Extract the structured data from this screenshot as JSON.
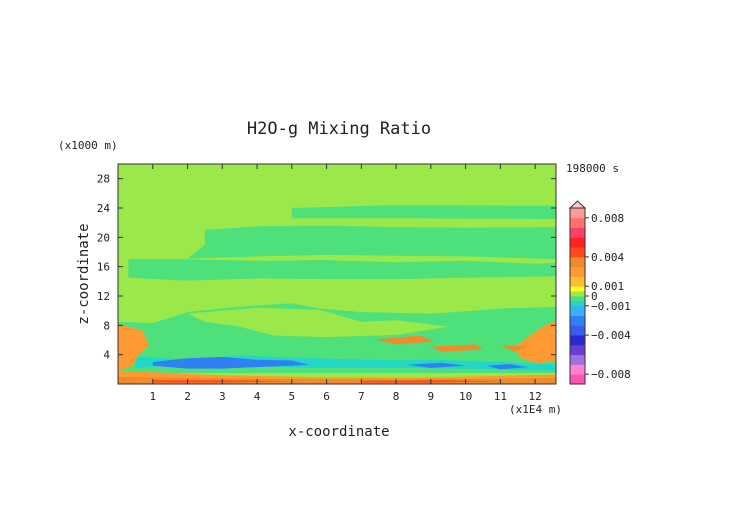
{
  "chart_data": {
    "type": "heatmap",
    "title": "H2O-g Mixing Ratio",
    "xlabel": "x-coordinate",
    "ylabel": "z-coordinate",
    "x_unit": "(x1E4 m)",
    "y_unit": "(x1000 m)",
    "time_label": "198000 s",
    "xlim": [
      0,
      12.6
    ],
    "ylim": [
      0,
      30
    ],
    "x_ticks": [
      1,
      2,
      3,
      4,
      5,
      6,
      7,
      8,
      9,
      10,
      11,
      12
    ],
    "y_ticks": [
      4,
      8,
      12,
      16,
      20,
      24,
      28
    ],
    "colorbar": {
      "levels": [
        -0.009,
        -0.008,
        -0.007,
        -0.006,
        -0.005,
        -0.004,
        -0.003,
        -0.002,
        -0.001,
        -0.0005,
        0,
        0.0005,
        0.001,
        0.002,
        0.003,
        0.004,
        0.005,
        0.006,
        0.007,
        0.008,
        0.009
      ],
      "colors": [
        "#ff55b0",
        "#ff7fd0",
        "#a070e0",
        "#6a3fd0",
        "#2a2ad0",
        "#3a5af0",
        "#2f7ff5",
        "#39b0ff",
        "#22d6c8",
        "#4ee07a",
        "#9be84a",
        "#ffff20",
        "#ffc030",
        "#ff9a33",
        "#f08a2a",
        "#ff4a20",
        "#ff2020",
        "#ff4060",
        "#ff7070",
        "#ff9a9a"
      ],
      "labels": [
        {
          "value": 0.008,
          "text": "0.008"
        },
        {
          "value": 0.004,
          "text": "0.004"
        },
        {
          "value": 0.001,
          "text": "0.001"
        },
        {
          "value": 0,
          "text": "0"
        },
        {
          "value": -0.001,
          "text": "−0.001"
        },
        {
          "value": -0.004,
          "text": "−0.004"
        },
        {
          "value": -0.008,
          "text": "−0.008"
        }
      ]
    },
    "background_value": 0.0002,
    "regions": [
      {
        "level": -0.0005,
        "points": [
          [
            0,
            8.5
          ],
          [
            1,
            8.3
          ],
          [
            2,
            9.8
          ],
          [
            3,
            10.3
          ],
          [
            4,
            10.7
          ],
          [
            5,
            11
          ],
          [
            5.8,
            10.3
          ],
          [
            7,
            9.8
          ],
          [
            9,
            9.6
          ],
          [
            10,
            9.9
          ],
          [
            11,
            10.3
          ],
          [
            12.6,
            10.5
          ],
          [
            12.6,
            1.5
          ],
          [
            0,
            1.5
          ]
        ]
      },
      {
        "level": -0.0005,
        "points": [
          [
            2.5,
            21
          ],
          [
            4,
            21.5
          ],
          [
            6,
            21.6
          ],
          [
            8,
            21.4
          ],
          [
            10,
            21.3
          ],
          [
            12.6,
            21.4
          ],
          [
            12.6,
            17
          ],
          [
            10,
            17.4
          ],
          [
            8,
            17.5
          ],
          [
            6,
            17.6
          ],
          [
            4,
            17.4
          ],
          [
            2,
            17.1
          ],
          [
            2.5,
            19
          ]
        ]
      },
      {
        "level": -0.0005,
        "points": [
          [
            0.3,
            17
          ],
          [
            2,
            17
          ],
          [
            4,
            16.8
          ],
          [
            6,
            16.9
          ],
          [
            8,
            16.6
          ],
          [
            10,
            16.8
          ],
          [
            12,
            16.4
          ],
          [
            12.6,
            16.5
          ],
          [
            12.6,
            14.7
          ],
          [
            10,
            14.5
          ],
          [
            8,
            14.3
          ],
          [
            6,
            14.3
          ],
          [
            4,
            14.4
          ],
          [
            2,
            14.1
          ],
          [
            0.3,
            14.5
          ]
        ]
      },
      {
        "level": -0.0005,
        "points": [
          [
            5,
            24
          ],
          [
            8,
            24.4
          ],
          [
            12.6,
            24.3
          ],
          [
            12.6,
            22.5
          ],
          [
            8,
            22.6
          ],
          [
            5,
            22.6
          ]
        ]
      },
      {
        "level": 0.0002,
        "points": [
          [
            2,
            9.6
          ],
          [
            4,
            10.4
          ],
          [
            5.8,
            10.1
          ],
          [
            7,
            8.5
          ],
          [
            8,
            8.7
          ],
          [
            9.5,
            7.8
          ],
          [
            8,
            6.7
          ],
          [
            6,
            6.4
          ],
          [
            4.5,
            6.6
          ],
          [
            3.5,
            7.8
          ],
          [
            2.5,
            8.5
          ]
        ]
      },
      {
        "level": -0.001,
        "points": [
          [
            0.5,
            3.8
          ],
          [
            2,
            3.3
          ],
          [
            3.5,
            3.9
          ],
          [
            5,
            3.6
          ],
          [
            6.5,
            3.4
          ],
          [
            8,
            3.2
          ],
          [
            9,
            3.3
          ],
          [
            11,
            3
          ],
          [
            12.6,
            2.7
          ],
          [
            12.6,
            1.8
          ],
          [
            10,
            2.1
          ],
          [
            8,
            2.2
          ],
          [
            6,
            2.2
          ],
          [
            4,
            2.4
          ],
          [
            2,
            2.6
          ],
          [
            0.5,
            2.2
          ]
        ]
      },
      {
        "level": -0.003,
        "points": [
          [
            1,
            3
          ],
          [
            2,
            3.5
          ],
          [
            3,
            3.7
          ],
          [
            4,
            3.3
          ],
          [
            5,
            3.2
          ],
          [
            5.5,
            2.6
          ],
          [
            4,
            2.3
          ],
          [
            3,
            2.1
          ],
          [
            2,
            2.1
          ],
          [
            1,
            2.5
          ]
        ]
      },
      {
        "level": -0.003,
        "points": [
          [
            8.3,
            2.6
          ],
          [
            9.3,
            2.9
          ],
          [
            10,
            2.5
          ],
          [
            9,
            2.2
          ]
        ]
      },
      {
        "level": -0.003,
        "points": [
          [
            10.6,
            2.5
          ],
          [
            11.3,
            2.7
          ],
          [
            11.8,
            2.3
          ],
          [
            11,
            2
          ]
        ]
      },
      {
        "level": 0.002,
        "points": [
          [
            0,
            8.2
          ],
          [
            0.7,
            7.3
          ],
          [
            0.9,
            5.3
          ],
          [
            0.6,
            4
          ],
          [
            0.4,
            2.4
          ],
          [
            0,
            1.8
          ]
        ]
      },
      {
        "level": 0.002,
        "points": [
          [
            12.6,
            8.6
          ],
          [
            12.3,
            8
          ],
          [
            11.9,
            6.8
          ],
          [
            11.4,
            5
          ],
          [
            11.6,
            3.5
          ],
          [
            12.1,
            2.8
          ],
          [
            12.6,
            3.2
          ]
        ]
      },
      {
        "level": 0.003,
        "points": [
          [
            7.4,
            6.1
          ],
          [
            8.7,
            6.6
          ],
          [
            9.1,
            5.8
          ],
          [
            8,
            5.4
          ]
        ]
      },
      {
        "level": 0.003,
        "points": [
          [
            9,
            5.1
          ],
          [
            10.3,
            5.4
          ],
          [
            10.5,
            4.7
          ],
          [
            9.3,
            4.4
          ]
        ]
      },
      {
        "level": 0.003,
        "points": [
          [
            11,
            5.3
          ],
          [
            11.8,
            5.1
          ],
          [
            11.4,
            4.4
          ]
        ]
      },
      {
        "level": 0.002,
        "points": [
          [
            0,
            1.8
          ],
          [
            3,
            1.2
          ],
          [
            6,
            0.9
          ],
          [
            9,
            0.9
          ],
          [
            12.6,
            1.3
          ],
          [
            12.6,
            0
          ],
          [
            0,
            0
          ]
        ]
      },
      {
        "level": 0.003,
        "points": [
          [
            0,
            1
          ],
          [
            4,
            0.7
          ],
          [
            8,
            0.6
          ],
          [
            12.6,
            0.8
          ],
          [
            12.6,
            0
          ],
          [
            0,
            0
          ]
        ]
      },
      {
        "level": 0.004,
        "points": [
          [
            1,
            0.5
          ],
          [
            3,
            0.5
          ],
          [
            5,
            0.4
          ],
          [
            3,
            0.2
          ],
          [
            1,
            0.2
          ]
        ]
      },
      {
        "level": 0.004,
        "points": [
          [
            7,
            0.45
          ],
          [
            9.5,
            0.5
          ],
          [
            11,
            0.35
          ],
          [
            9,
            0.2
          ],
          [
            7,
            0.2
          ]
        ]
      }
    ]
  }
}
